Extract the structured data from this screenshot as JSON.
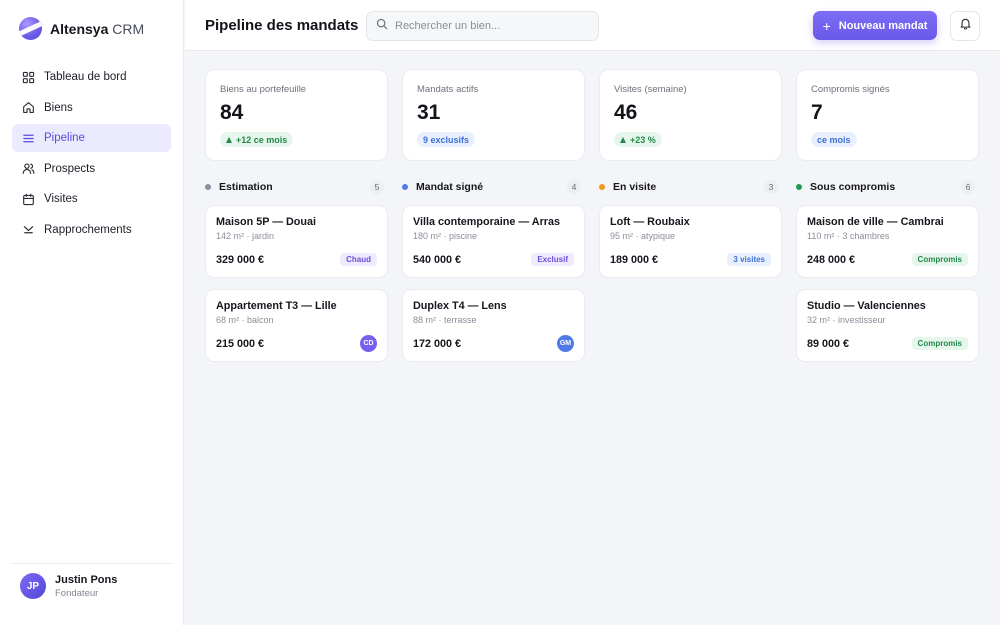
{
  "brand": {
    "name": "Altensya",
    "suffix": "CRM",
    "logo_icon": "planet-logo-icon"
  },
  "sidebar": {
    "items": [
      {
        "label": "Tableau de bord",
        "icon": "grid-icon",
        "active": false
      },
      {
        "label": "Biens",
        "icon": "home-icon",
        "active": false
      },
      {
        "label": "Pipeline",
        "icon": "list-icon",
        "active": true
      },
      {
        "label": "Prospects",
        "icon": "users-icon",
        "active": false
      },
      {
        "label": "Visites",
        "icon": "calendar-icon",
        "active": false
      },
      {
        "label": "Rapprochements",
        "icon": "merge-icon",
        "active": false
      }
    ]
  },
  "user": {
    "initials": "JP",
    "name": "Justin Pons",
    "role": "Fondateur"
  },
  "header": {
    "title": "Pipeline des mandats",
    "search_placeholder": "Rechercher un bien...",
    "new_button": "Nouveau mandat"
  },
  "stats": [
    {
      "label": "Biens au portefeuille",
      "value": "84",
      "badge": "+12 ce mois",
      "trend": "up"
    },
    {
      "label": "Mandats actifs",
      "value": "31",
      "badge": "9 exclusifs",
      "trend": "none"
    },
    {
      "label": "Visites (semaine)",
      "value": "46",
      "badge": "+23 %",
      "trend": "up"
    },
    {
      "label": "Compromis signés",
      "value": "7",
      "badge": "ce mois",
      "trend": "none"
    }
  ],
  "columns": [
    {
      "title": "Estimation",
      "count": "5",
      "color": "#8b8fa0",
      "cards": [
        {
          "title": "Maison 5P — Douai",
          "sub": "142 m² · jardin",
          "price": "329 000 €",
          "tag": "Chaud",
          "tag_style": "purple"
        },
        {
          "title": "Appartement T3 — Lille",
          "sub": "68 m² · balcon",
          "price": "215 000 €",
          "avatar": "CD",
          "avatar_color": "#7a5ef0"
        }
      ]
    },
    {
      "title": "Mandat signé",
      "count": "4",
      "color": "#4f7be8",
      "cards": [
        {
          "title": "Villa contemporaine — Arras",
          "sub": "180 m² · piscine",
          "price": "540 000 €",
          "tag": "Exclusif",
          "tag_style": "purple"
        },
        {
          "title": "Duplex T4 — Lens",
          "sub": "88 m² · terrasse",
          "price": "172 000 €",
          "avatar": "GM",
          "avatar_color": "#4f7be8"
        }
      ]
    },
    {
      "title": "En visite",
      "count": "3",
      "color": "#f09a1f",
      "cards": [
        {
          "title": "Loft — Roubaix",
          "sub": "95 m² · atypique",
          "price": "189 000 €",
          "tag": "3 visites",
          "tag_style": "blue"
        }
      ]
    },
    {
      "title": "Sous compromis",
      "count": "6",
      "color": "#1f9d55",
      "cards": [
        {
          "title": "Maison de ville — Cambrai",
          "sub": "110 m² · 3 chambres",
          "price": "248 000 €",
          "tag": "Compromis",
          "tag_style": "green"
        },
        {
          "title": "Studio — Valenciennes",
          "sub": "32 m² · investisseur",
          "price": "89 000 €",
          "tag": "Compromis",
          "tag_style": "green"
        }
      ]
    }
  ]
}
